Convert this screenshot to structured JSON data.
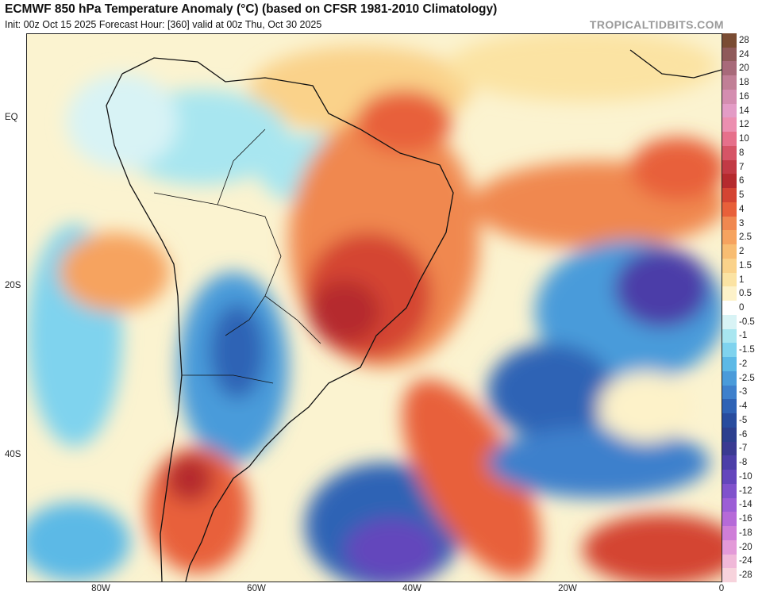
{
  "header": {
    "title": "ECMWF 850 hPa Temperature Anomaly (°C) (based on CFSR 1981-2010 Climatology)",
    "subtitle": "Init: 00z Oct 15 2025   Forecast Hour: [360]   valid at 00z Thu, Oct 30 2025",
    "brand": "TROPICALTIDBITS.COM"
  },
  "axes": {
    "lat_labels": [
      "EQ",
      "20S",
      "40S"
    ],
    "lon_labels": [
      "80W",
      "60W",
      "40W",
      "20W",
      "0"
    ]
  },
  "colorbar": {
    "labels": [
      "28",
      "24",
      "20",
      "18",
      "16",
      "14",
      "12",
      "10",
      "8",
      "7",
      "6",
      "5",
      "4",
      "3",
      "2.5",
      "2",
      "1.5",
      "1",
      "0.5",
      "0",
      "-0.5",
      "-1",
      "-1.5",
      "-2",
      "-2.5",
      "-3",
      "-4",
      "-5",
      "-6",
      "-7",
      "-8",
      "-10",
      "-12",
      "-14",
      "-16",
      "-18",
      "-20",
      "-24",
      "-28"
    ],
    "colors": [
      "#7a4c33",
      "#8f5a5a",
      "#a86a7a",
      "#c17f96",
      "#d48db0",
      "#e39cc6",
      "#ec8fb0",
      "#e6708b",
      "#d65466",
      "#c23a45",
      "#b52a2e",
      "#d44433",
      "#e8603a",
      "#f08850",
      "#f6a35f",
      "#f8bd72",
      "#fad28a",
      "#fbe3a3",
      "#fdf2c9",
      "#ffffff",
      "#d8f3f5",
      "#a8e6f0",
      "#7fd3ee",
      "#5cb9e6",
      "#4a9bda",
      "#3e80cc",
      "#2f63b5",
      "#284c9e",
      "#2c3f8e",
      "#3a3a92",
      "#4c3ea8",
      "#6446bc",
      "#8052cc",
      "#9c5ed6",
      "#b66ad8",
      "#cf7ed8",
      "#e39ad8",
      "#f0b8d8",
      "#f7d3dc"
    ]
  },
  "map_colors": {
    "land_border": "#111111",
    "neutral": "#fdf6dc",
    "warm_light": "#f8bd72",
    "warm": "#e8603a",
    "warm_strong": "#c23a45",
    "warm_peak": "#9a4a6a",
    "cool_light": "#a8e6f0",
    "cool": "#4a9bda",
    "cool_strong": "#284c9e",
    "cool_peak": "#5a44b4"
  }
}
